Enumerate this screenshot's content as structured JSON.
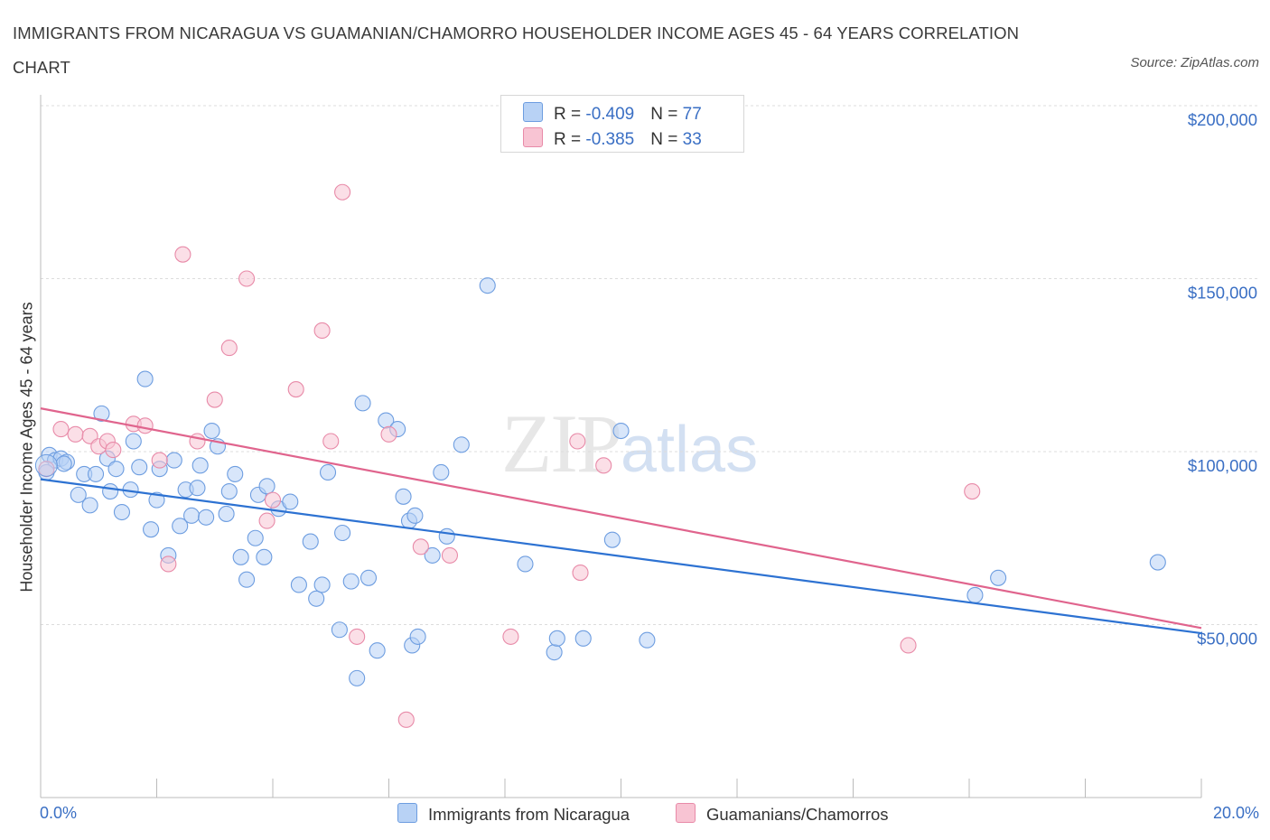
{
  "title": "IMMIGRANTS FROM NICARAGUA VS GUAMANIAN/CHAMORRO HOUSEHOLDER INCOME AGES 45 - 64 YEARS CORRELATION CHART",
  "source": "Source: ZipAtlas.com",
  "watermark": {
    "zip": "ZIP",
    "atlas": "atlas"
  },
  "colors": {
    "blue_fill": "#b8d2f5",
    "blue_stroke": "#6d9de0",
    "blue_line": "#2d72d2",
    "pink_fill": "#f8c4d3",
    "pink_stroke": "#e88aa8",
    "pink_line": "#e0648d",
    "axis_text": "#3a6fc4",
    "grid": "#dcdcdc"
  },
  "legend": {
    "rows": [
      {
        "r_label": "R = ",
        "r_value": "-0.409",
        "n_label": "N = ",
        "n_value": "77",
        "color": "blue"
      },
      {
        "r_label": "R = ",
        "r_value": "-0.385",
        "n_label": "N = ",
        "n_value": "33",
        "color": "pink"
      }
    ]
  },
  "chart_data": {
    "type": "scatter",
    "title": "IMMIGRANTS FROM NICARAGUA VS GUAMANIAN/CHAMORRO HOUSEHOLDER INCOME AGES 45 - 64 YEARS CORRELATION CHART",
    "xlabel": "",
    "ylabel": "Householder Income Ages 45 - 64 years",
    "x_tick_labels": [
      "0.0%",
      "20.0%"
    ],
    "y_tick_labels": [
      "$200,000",
      "$150,000",
      "$100,000",
      "$50,000"
    ],
    "xlim": [
      0,
      20
    ],
    "ylim": [
      0,
      200000
    ],
    "grid": true,
    "legend_position": "bottom",
    "series": [
      {
        "name": "Immigrants from Nicaragua",
        "color": "blue",
        "trend": {
          "x": [
            0,
            20
          ],
          "y": [
            92000,
            47500
          ]
        },
        "points": [
          [
            0.15,
            99000
          ],
          [
            0.25,
            97500
          ],
          [
            0.35,
            98000
          ],
          [
            0.45,
            97000
          ],
          [
            0.65,
            87500
          ],
          [
            0.75,
            93500
          ],
          [
            0.85,
            84500
          ],
          [
            0.95,
            93500
          ],
          [
            1.05,
            111000
          ],
          [
            1.15,
            98000
          ],
          [
            1.2,
            88500
          ],
          [
            1.3,
            95000
          ],
          [
            1.4,
            82500
          ],
          [
            1.55,
            89000
          ],
          [
            1.6,
            103000
          ],
          [
            1.7,
            95500
          ],
          [
            1.8,
            121000
          ],
          [
            1.9,
            77500
          ],
          [
            2.0,
            86000
          ],
          [
            2.05,
            95000
          ],
          [
            2.2,
            70000
          ],
          [
            2.3,
            97500
          ],
          [
            2.4,
            78500
          ],
          [
            2.5,
            89000
          ],
          [
            2.6,
            81500
          ],
          [
            2.7,
            89500
          ],
          [
            2.75,
            96000
          ],
          [
            2.85,
            81000
          ],
          [
            2.95,
            106000
          ],
          [
            3.05,
            101500
          ],
          [
            3.2,
            82000
          ],
          [
            3.25,
            88500
          ],
          [
            3.35,
            93500
          ],
          [
            3.45,
            69500
          ],
          [
            3.55,
            63000
          ],
          [
            3.7,
            75000
          ],
          [
            3.75,
            87500
          ],
          [
            3.85,
            69500
          ],
          [
            3.9,
            90000
          ],
          [
            4.1,
            83500
          ],
          [
            4.3,
            85500
          ],
          [
            4.45,
            61500
          ],
          [
            4.65,
            74000
          ],
          [
            4.75,
            57500
          ],
          [
            4.85,
            61500
          ],
          [
            4.95,
            94000
          ],
          [
            5.15,
            48500
          ],
          [
            5.2,
            76500
          ],
          [
            5.35,
            62500
          ],
          [
            5.45,
            34500
          ],
          [
            5.55,
            114000
          ],
          [
            5.65,
            63500
          ],
          [
            5.8,
            42500
          ],
          [
            5.95,
            109000
          ],
          [
            6.15,
            106500
          ],
          [
            6.25,
            87000
          ],
          [
            6.35,
            80000
          ],
          [
            6.45,
            81500
          ],
          [
            6.4,
            44000
          ],
          [
            6.5,
            46500
          ],
          [
            6.75,
            70000
          ],
          [
            6.9,
            94000
          ],
          [
            7.0,
            75500
          ],
          [
            7.25,
            102000
          ],
          [
            7.7,
            148000
          ],
          [
            8.35,
            67500
          ],
          [
            8.85,
            42000
          ],
          [
            8.9,
            46000
          ],
          [
            9.35,
            46000
          ],
          [
            9.85,
            74500
          ],
          [
            10.0,
            106000
          ],
          [
            10.45,
            45500
          ],
          [
            16.1,
            58500
          ],
          [
            16.5,
            63500
          ],
          [
            19.25,
            68000
          ],
          [
            0.1,
            94000
          ],
          [
            0.4,
            96500
          ]
        ]
      },
      {
        "name": "Guamanians/Chamorros",
        "color": "pink",
        "trend": {
          "x": [
            0,
            20
          ],
          "y": [
            112500,
            49000
          ]
        },
        "points": [
          [
            0.1,
            95000
          ],
          [
            0.35,
            106500
          ],
          [
            0.6,
            105000
          ],
          [
            0.85,
            104500
          ],
          [
            1.0,
            101500
          ],
          [
            1.15,
            103000
          ],
          [
            1.25,
            100500
          ],
          [
            1.6,
            108000
          ],
          [
            1.8,
            107500
          ],
          [
            2.05,
            97500
          ],
          [
            2.2,
            67500
          ],
          [
            2.45,
            157000
          ],
          [
            2.7,
            103000
          ],
          [
            3.0,
            115000
          ],
          [
            3.25,
            130000
          ],
          [
            3.55,
            150000
          ],
          [
            3.9,
            80000
          ],
          [
            4.0,
            86000
          ],
          [
            4.4,
            118000
          ],
          [
            4.85,
            135000
          ],
          [
            5.0,
            103000
          ],
          [
            5.2,
            175000
          ],
          [
            5.45,
            46500
          ],
          [
            6.0,
            105000
          ],
          [
            6.3,
            22500
          ],
          [
            6.55,
            72500
          ],
          [
            7.05,
            70000
          ],
          [
            8.1,
            46500
          ],
          [
            9.3,
            65000
          ],
          [
            9.25,
            103000
          ],
          [
            9.7,
            96000
          ],
          [
            16.05,
            88500
          ],
          [
            14.95,
            44000
          ]
        ]
      }
    ]
  }
}
